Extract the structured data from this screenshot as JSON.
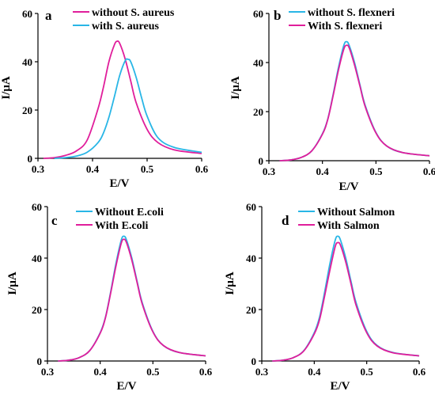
{
  "colors": {
    "magenta": "#e01e9b",
    "cyan": "#29b6e6"
  },
  "chart_data": [
    {
      "type": "line",
      "panel_label": "a",
      "xlabel": "E/V",
      "ylabel": "I/µA",
      "xlim": [
        0.3,
        0.6
      ],
      "ylim": [
        0,
        60
      ],
      "xticks": [
        "0.3",
        "0.4",
        "0.5",
        "0.6"
      ],
      "yticks": [
        "0",
        "20",
        "40",
        "60"
      ],
      "legend_position": "top-left",
      "series": [
        {
          "name": "without S. aureus",
          "color": "#e01e9b",
          "x": [
            0.31,
            0.33,
            0.35,
            0.37,
            0.39,
            0.41,
            0.42,
            0.43,
            0.44,
            0.445,
            0.45,
            0.46,
            0.47,
            0.48,
            0.5,
            0.52,
            0.55,
            0.6
          ],
          "y": [
            0,
            0.3,
            1.2,
            3.0,
            7.5,
            20.5,
            29.5,
            40.0,
            47.0,
            48.5,
            47.5,
            41.0,
            32.0,
            23.0,
            12.0,
            6.5,
            3.5,
            2.0
          ]
        },
        {
          "name": "with S. aureus",
          "color": "#29b6e6",
          "x": [
            0.33,
            0.35,
            0.37,
            0.39,
            0.41,
            0.42,
            0.43,
            0.44,
            0.45,
            0.46,
            0.465,
            0.47,
            0.48,
            0.49,
            0.5,
            0.52,
            0.55,
            0.6
          ],
          "y": [
            0,
            0.3,
            0.9,
            2.5,
            6.5,
            10.5,
            17.0,
            25.5,
            34.5,
            40.5,
            41.0,
            40.0,
            33.5,
            25.0,
            17.5,
            8.5,
            4.5,
            2.5
          ]
        }
      ]
    },
    {
      "type": "line",
      "panel_label": "b",
      "xlabel": "E/V",
      "ylabel": "I/µA",
      "xlim": [
        0.3,
        0.6
      ],
      "ylim": [
        0,
        60
      ],
      "xticks": [
        "0.3",
        "0.4",
        "0.5",
        "0.6"
      ],
      "yticks": [
        "0",
        "20",
        "40",
        "60"
      ],
      "legend_position": "top-left",
      "series": [
        {
          "name": "without S. flexneri",
          "color": "#29b6e6",
          "x": [
            0.32,
            0.34,
            0.36,
            0.38,
            0.4,
            0.41,
            0.42,
            0.43,
            0.44,
            0.445,
            0.45,
            0.46,
            0.47,
            0.48,
            0.5,
            0.52,
            0.55,
            0.6
          ],
          "y": [
            0,
            0.3,
            1.3,
            4.0,
            11.0,
            17.0,
            27.0,
            38.0,
            47.0,
            48.5,
            47.0,
            40.0,
            31.0,
            22.5,
            11.5,
            6.0,
            3.3,
            2.0
          ]
        },
        {
          "name": "With S. flexneri",
          "color": "#e01e9b",
          "x": [
            0.32,
            0.34,
            0.36,
            0.38,
            0.4,
            0.41,
            0.42,
            0.43,
            0.44,
            0.445,
            0.45,
            0.46,
            0.47,
            0.48,
            0.5,
            0.52,
            0.55,
            0.6
          ],
          "y": [
            0,
            0.3,
            1.3,
            4.0,
            10.8,
            16.8,
            26.5,
            37.0,
            45.5,
            47.0,
            46.0,
            39.0,
            30.5,
            22.0,
            11.3,
            6.0,
            3.3,
            2.0
          ]
        }
      ]
    },
    {
      "type": "line",
      "panel_label": "c",
      "xlabel": "E/V",
      "ylabel": "I/µA",
      "xlim": [
        0.3,
        0.6
      ],
      "ylim": [
        0,
        60
      ],
      "xticks": [
        "0.3",
        "0.4",
        "0.5",
        "0.6"
      ],
      "yticks": [
        "0",
        "20",
        "40",
        "60"
      ],
      "legend_position": "top-left",
      "series": [
        {
          "name": "Without E.coli",
          "color": "#29b6e6",
          "x": [
            0.32,
            0.34,
            0.36,
            0.38,
            0.4,
            0.41,
            0.42,
            0.43,
            0.44,
            0.445,
            0.45,
            0.46,
            0.47,
            0.48,
            0.5,
            0.52,
            0.55,
            0.6
          ],
          "y": [
            0,
            0.3,
            1.3,
            4.0,
            11.0,
            17.0,
            27.0,
            38.0,
            47.0,
            48.5,
            47.0,
            40.0,
            31.0,
            22.5,
            11.5,
            6.0,
            3.3,
            2.0
          ]
        },
        {
          "name": "With E.coli",
          "color": "#e01e9b",
          "x": [
            0.32,
            0.34,
            0.36,
            0.38,
            0.4,
            0.41,
            0.42,
            0.43,
            0.44,
            0.445,
            0.45,
            0.46,
            0.47,
            0.48,
            0.5,
            0.52,
            0.55,
            0.6
          ],
          "y": [
            0,
            0.3,
            1.3,
            4.0,
            10.8,
            16.8,
            26.5,
            37.0,
            45.8,
            47.3,
            46.0,
            39.2,
            30.5,
            22.0,
            11.3,
            6.0,
            3.3,
            2.0
          ]
        }
      ]
    },
    {
      "type": "line",
      "panel_label": "d",
      "xlabel": "E/V",
      "ylabel": "I/µA",
      "xlim": [
        0.3,
        0.6
      ],
      "ylim": [
        0,
        60
      ],
      "xticks": [
        "0.3",
        "0.4",
        "0.5",
        "0.6"
      ],
      "yticks": [
        "0",
        "20",
        "40",
        "60"
      ],
      "legend_position": "top-left",
      "series": [
        {
          "name": "Without Salmon",
          "color": "#29b6e6",
          "x": [
            0.32,
            0.34,
            0.36,
            0.38,
            0.4,
            0.41,
            0.42,
            0.43,
            0.44,
            0.445,
            0.45,
            0.46,
            0.47,
            0.48,
            0.5,
            0.52,
            0.55,
            0.6
          ],
          "y": [
            0,
            0.3,
            1.3,
            4.0,
            11.0,
            17.0,
            27.0,
            38.0,
            47.0,
            48.5,
            47.0,
            40.0,
            31.0,
            22.5,
            11.5,
            6.0,
            3.3,
            2.0
          ]
        },
        {
          "name": "With Salmon",
          "color": "#e01e9b",
          "x": [
            0.32,
            0.34,
            0.36,
            0.38,
            0.4,
            0.41,
            0.42,
            0.43,
            0.44,
            0.445,
            0.45,
            0.46,
            0.47,
            0.48,
            0.5,
            0.52,
            0.55,
            0.6
          ],
          "y": [
            0,
            0.3,
            1.3,
            3.9,
            10.5,
            16.0,
            25.5,
            35.5,
            44.5,
            46.0,
            45.0,
            38.5,
            30.0,
            21.5,
            11.0,
            5.8,
            3.2,
            2.0
          ]
        }
      ]
    }
  ]
}
